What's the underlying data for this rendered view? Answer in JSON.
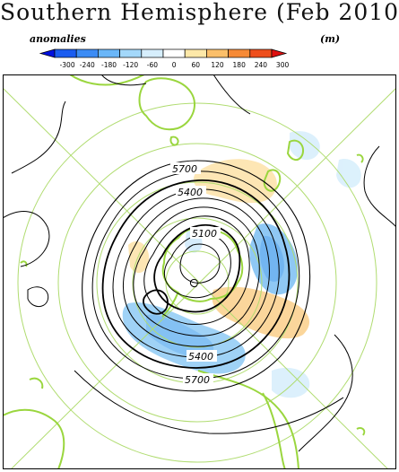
{
  "title": "Southern Hemisphere (Feb 2010)",
  "legend": {
    "left_label": "anomalies",
    "right_label": "(m)",
    "ticks": [
      "-300",
      "-240",
      "-180",
      "-120",
      "-60",
      "0",
      "60",
      "120",
      "180",
      "240",
      "300"
    ],
    "colors": [
      "#0010e0",
      "#1a5cf0",
      "#3c8cf5",
      "#6ab6f8",
      "#a3d8fa",
      "#d6eefc",
      "#ffffff",
      "#fde8a8",
      "#fbbf6a",
      "#f68a36",
      "#ee4e1c",
      "#de1010"
    ]
  },
  "map": {
    "contour_labels": [
      {
        "id": "5700-top",
        "text": "5700"
      },
      {
        "id": "5400-top",
        "text": "5400"
      },
      {
        "id": "5100-center",
        "text": "5100"
      },
      {
        "id": "5400-bottom",
        "text": "5400"
      },
      {
        "id": "5700-bottom",
        "text": "5700"
      }
    ],
    "colors": {
      "coast": "#9ad63e",
      "grid": "#b0dc70",
      "contour": "#000000",
      "negative_anomaly": "#9ed2f6",
      "positive_anomaly": "#fbd89a"
    }
  }
}
